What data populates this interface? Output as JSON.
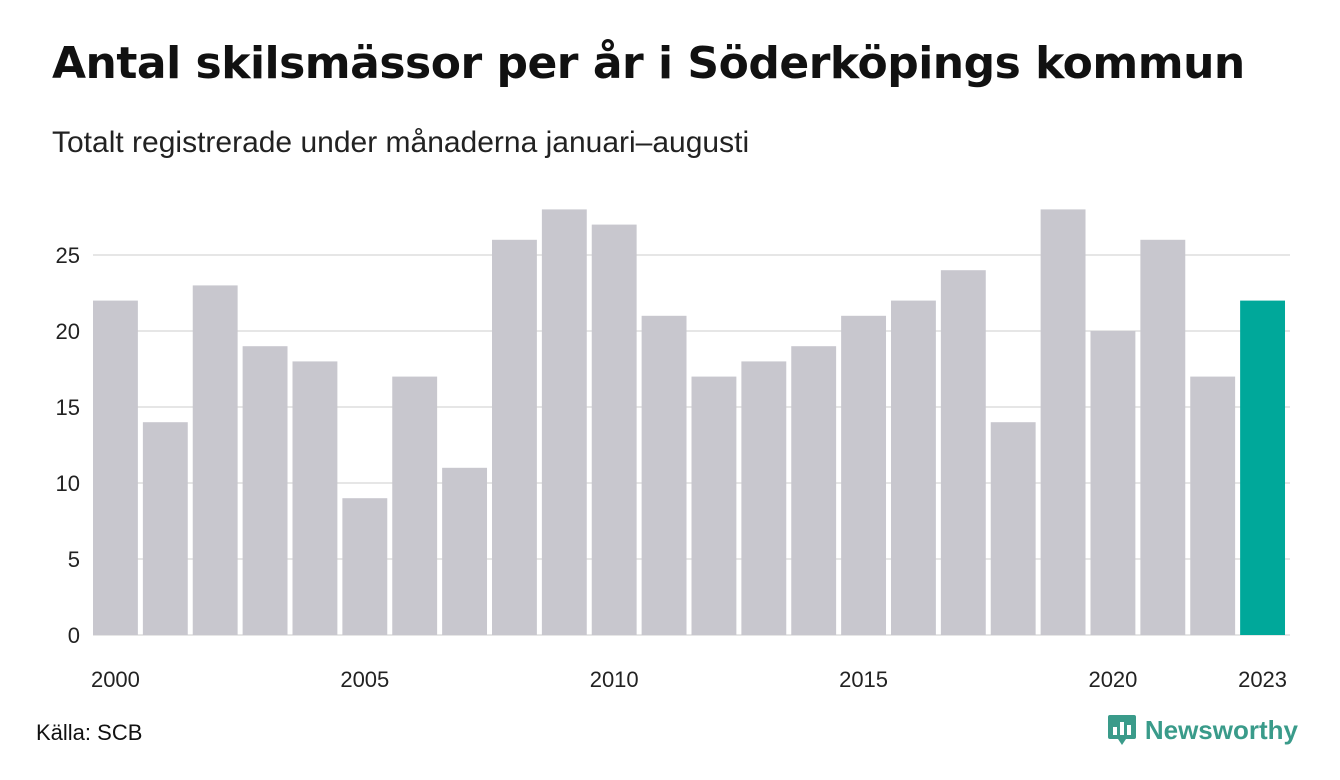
{
  "title": "Antal skilsmässor per år i Söderköpings kommun",
  "subtitle": "Totalt registrerade under månaderna januari–augusti",
  "source": "Källa: SCB",
  "brand": "Newsworthy",
  "chart_data": {
    "type": "bar",
    "categories": [
      "2000",
      "2001",
      "2002",
      "2003",
      "2004",
      "2005",
      "2006",
      "2007",
      "2008",
      "2009",
      "2010",
      "2011",
      "2012",
      "2013",
      "2014",
      "2015",
      "2016",
      "2017",
      "2018",
      "2019",
      "2020",
      "2021",
      "2022",
      "2023"
    ],
    "values": [
      22,
      14,
      23,
      19,
      18,
      9,
      17,
      11,
      26,
      28,
      27,
      21,
      17,
      18,
      19,
      21,
      22,
      24,
      14,
      28,
      20,
      26,
      17,
      22
    ],
    "x_tick_labels": [
      "2000",
      "2005",
      "2010",
      "2015",
      "2020",
      "2023"
    ],
    "y_ticks": [
      0,
      5,
      10,
      15,
      20,
      25
    ],
    "ylim": [
      0,
      28
    ],
    "grid": true,
    "colors": {
      "bar": "#c8c7ce",
      "highlight": "#00a89a",
      "grid": "#e6e6e6"
    },
    "highlight_category": "2023"
  }
}
